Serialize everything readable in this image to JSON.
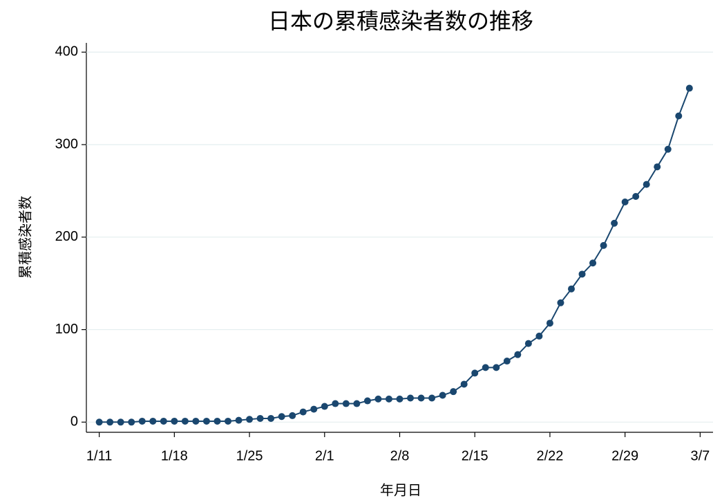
{
  "chart_data": {
    "type": "line",
    "title": "日本の累積感染者数の推移",
    "x_label": "年月日",
    "y_label": "累積感染者数",
    "x": [
      11,
      12,
      13,
      14,
      15,
      16,
      17,
      18,
      19,
      20,
      21,
      22,
      23,
      24,
      25,
      26,
      27,
      28,
      29,
      30,
      31,
      32,
      33,
      34,
      35,
      36,
      37,
      38,
      39,
      40,
      41,
      42,
      43,
      44,
      45,
      46,
      47,
      48,
      49,
      50,
      51,
      52,
      53,
      54,
      55,
      56,
      57,
      58,
      59,
      60,
      61,
      62,
      63,
      64,
      65,
      66
    ],
    "series": [
      {
        "name": "累積感染者数",
        "color": "#1a476f",
        "values": [
          0,
          0,
          0,
          0,
          1,
          1,
          1,
          1,
          1,
          1,
          1,
          1,
          1,
          2,
          3,
          4,
          4,
          6,
          7,
          11,
          14,
          17,
          20,
          20,
          20,
          23,
          25,
          25,
          25,
          26,
          26,
          26,
          29,
          33,
          41,
          53,
          59,
          59,
          66,
          73,
          85,
          93,
          107,
          129,
          144,
          160,
          172,
          191,
          215,
          238,
          244,
          257,
          276,
          295,
          331,
          361
        ]
      }
    ],
    "xlim": [
      9.8,
      68.2
    ],
    "xticks": [
      {
        "value": 11,
        "label": "1/11"
      },
      {
        "value": 18,
        "label": "1/18"
      },
      {
        "value": 25,
        "label": "1/25"
      },
      {
        "value": 32,
        "label": "2/1"
      },
      {
        "value": 39,
        "label": "2/8"
      },
      {
        "value": 46,
        "label": "2/15"
      },
      {
        "value": 53,
        "label": "2/22"
      },
      {
        "value": 60,
        "label": "2/29"
      },
      {
        "value": 67,
        "label": "3/7"
      }
    ],
    "ylim": [
      -11,
      410
    ],
    "yticks": [
      0,
      100,
      200,
      300,
      400
    ],
    "grid": true
  }
}
